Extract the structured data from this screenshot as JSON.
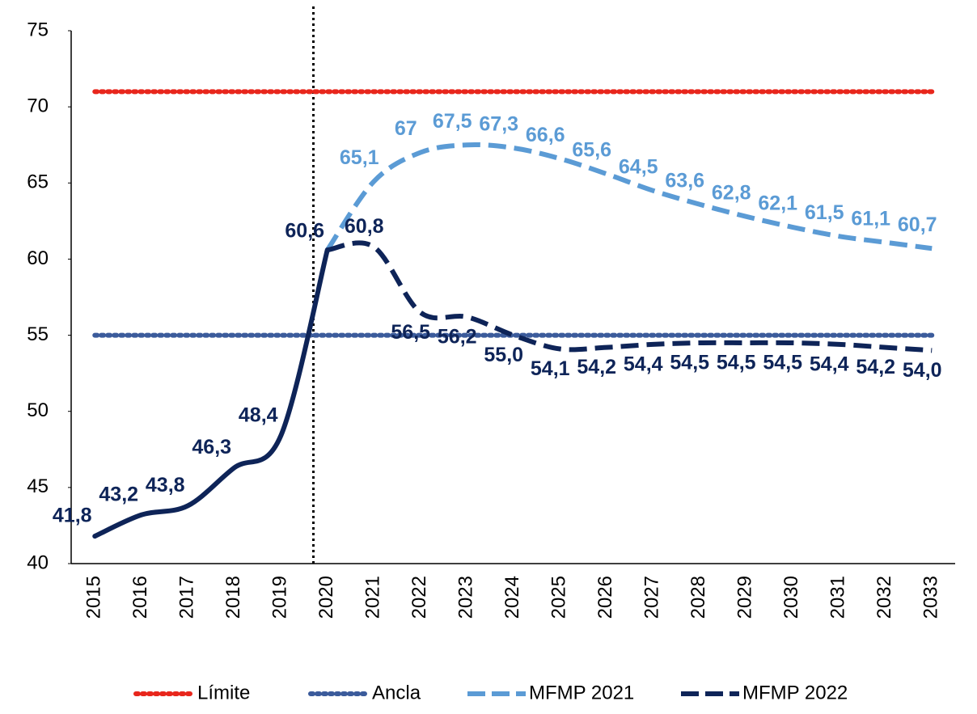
{
  "chart_data": {
    "type": "line",
    "categories": [
      "2015",
      "2016",
      "2017",
      "2018",
      "2019",
      "2020",
      "2021",
      "2022",
      "2023",
      "2024",
      "2025",
      "2026",
      "2027",
      "2028",
      "2029",
      "2030",
      "2031",
      "2032",
      "2033"
    ],
    "ylim": [
      40,
      75
    ],
    "yticks": [
      40,
      45,
      50,
      55,
      60,
      65,
      70,
      75
    ],
    "grid": false,
    "legend": "bottom",
    "series": [
      {
        "name": "Límite",
        "color": "#e8261c",
        "style": "dotted",
        "values": [
          71,
          71,
          71,
          71,
          71,
          71,
          71,
          71,
          71,
          71,
          71,
          71,
          71,
          71,
          71,
          71,
          71,
          71,
          71
        ]
      },
      {
        "name": "Ancla",
        "color": "#3b5b9b",
        "style": "dotted",
        "values": [
          55,
          55,
          55,
          55,
          55,
          55,
          55,
          55,
          55,
          55,
          55,
          55,
          55,
          55,
          55,
          55,
          55,
          55,
          55
        ]
      },
      {
        "name": "MFMP 2021",
        "color": "#5b9bd5",
        "style": "dashed",
        "values": [
          null,
          null,
          null,
          null,
          null,
          60.6,
          65.1,
          67,
          67.5,
          67.3,
          66.6,
          65.6,
          64.5,
          63.6,
          62.8,
          62.1,
          61.5,
          61.1,
          60.7
        ],
        "value_labels": [
          null,
          null,
          null,
          null,
          null,
          null,
          "65,1",
          "67",
          "67,5",
          "67,3",
          "66,6",
          "65,6",
          "64,5",
          "63,6",
          "62,8",
          "62,1",
          "61,5",
          "61,1",
          "60,7"
        ]
      },
      {
        "name": "MFMP 2022",
        "color": "#0e2458",
        "style": "dashed",
        "solid_through": "2020",
        "values": [
          41.8,
          43.2,
          43.8,
          46.3,
          48.4,
          60.6,
          60.8,
          56.5,
          56.2,
          55.0,
          54.1,
          54.2,
          54.4,
          54.5,
          54.5,
          54.5,
          54.4,
          54.2,
          54.0
        ],
        "value_labels": [
          "41,8",
          "43,2",
          "43,8",
          "46,3",
          "48,4",
          "60,6",
          "60,8",
          "56,5",
          "56,2",
          "55,0",
          "54,1",
          "54,2",
          "54,4",
          "54,5",
          "54,5",
          "54,5",
          "54,4",
          "54,2",
          "54,0"
        ]
      }
    ]
  }
}
